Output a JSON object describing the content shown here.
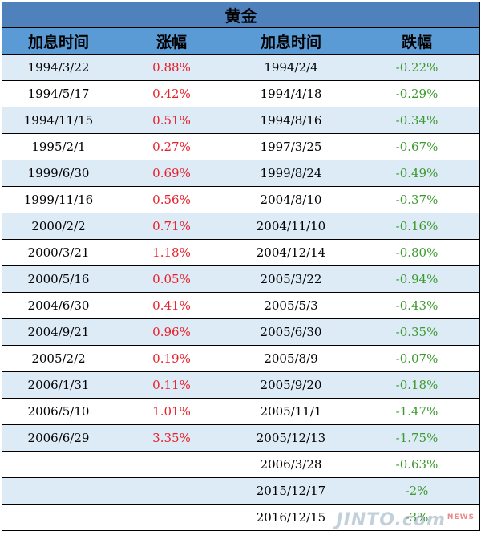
{
  "title": "黄金",
  "headers": [
    "加息时间",
    "涨幅",
    "加息时间",
    "跌幅"
  ],
  "colors": {
    "up": "#e8202a",
    "down": "#3c9a2e",
    "header": "#5b9bd5",
    "title": "#4f81bd",
    "stripe": "#ddebf7"
  },
  "rows": [
    {
      "up_date": "1994/3/22",
      "up_pct": "0.88%",
      "down_date": "1994/2/4",
      "down_pct": "-0.22%"
    },
    {
      "up_date": "1994/5/17",
      "up_pct": "0.42%",
      "down_date": "1994/4/18",
      "down_pct": "-0.29%"
    },
    {
      "up_date": "1994/11/15",
      "up_pct": "0.51%",
      "down_date": "1994/8/16",
      "down_pct": "-0.34%"
    },
    {
      "up_date": "1995/2/1",
      "up_pct": "0.27%",
      "down_date": "1997/3/25",
      "down_pct": "-0.67%"
    },
    {
      "up_date": "1999/6/30",
      "up_pct": "0.69%",
      "down_date": "1999/8/24",
      "down_pct": "-0.49%"
    },
    {
      "up_date": "1999/11/16",
      "up_pct": "0.56%",
      "down_date": "2004/8/10",
      "down_pct": "-0.37%"
    },
    {
      "up_date": "2000/2/2",
      "up_pct": "0.71%",
      "down_date": "2004/11/10",
      "down_pct": "-0.16%"
    },
    {
      "up_date": "2000/3/21",
      "up_pct": "1.18%",
      "down_date": "2004/12/14",
      "down_pct": "-0.80%"
    },
    {
      "up_date": "2000/5/16",
      "up_pct": "0.05%",
      "down_date": "2005/3/22",
      "down_pct": "-0.94%"
    },
    {
      "up_date": "2004/6/30",
      "up_pct": "0.41%",
      "down_date": "2005/5/3",
      "down_pct": "-0.43%"
    },
    {
      "up_date": "2004/9/21",
      "up_pct": "0.96%",
      "down_date": "2005/6/30",
      "down_pct": "-0.35%"
    },
    {
      "up_date": "2005/2/2",
      "up_pct": "0.19%",
      "down_date": "2005/8/9",
      "down_pct": "-0.07%"
    },
    {
      "up_date": "2006/1/31",
      "up_pct": "0.11%",
      "down_date": "2005/9/20",
      "down_pct": "-0.18%"
    },
    {
      "up_date": "2006/5/10",
      "up_pct": "1.01%",
      "down_date": "2005/11/1",
      "down_pct": "-1.47%"
    },
    {
      "up_date": "2006/6/29",
      "up_pct": "3.35%",
      "down_date": "2005/12/13",
      "down_pct": "-1.75%"
    },
    {
      "up_date": "",
      "up_pct": "",
      "down_date": "2006/3/28",
      "down_pct": "-0.63%"
    },
    {
      "up_date": "",
      "up_pct": "",
      "down_date": "2015/12/17",
      "down_pct": "-2%"
    },
    {
      "up_date": "",
      "up_pct": "",
      "down_date": "2016/12/15",
      "down_pct": "-3%"
    }
  ],
  "watermark": {
    "text": "JINTO.com",
    "badge": "NEWS"
  }
}
